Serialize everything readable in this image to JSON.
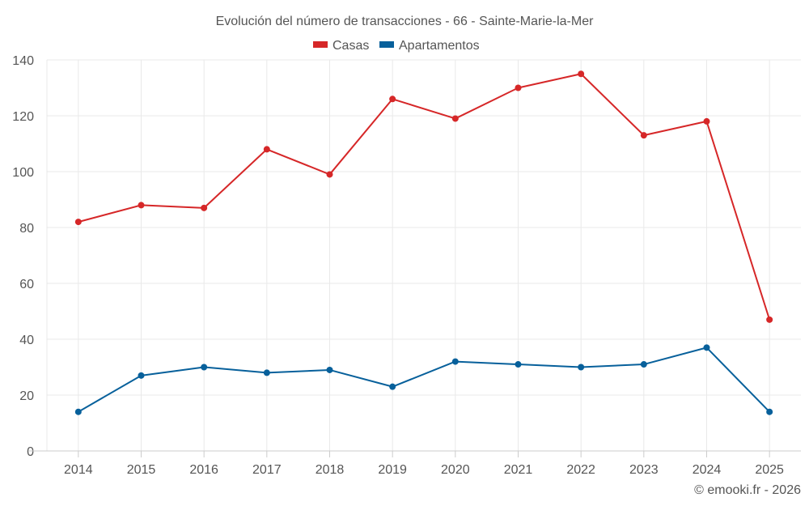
{
  "chart_data": {
    "type": "line",
    "title": "Evolución del número de transacciones - 66 - Sainte-Marie-la-Mer",
    "xlabel": "",
    "ylabel": "",
    "x": [
      "2014",
      "2015",
      "2016",
      "2017",
      "2018",
      "2019",
      "2020",
      "2021",
      "2022",
      "2023",
      "2024",
      "2025"
    ],
    "ylim": [
      0,
      140
    ],
    "yticks": [
      "0",
      "20",
      "40",
      "60",
      "80",
      "100",
      "120",
      "140"
    ],
    "ytick_values": [
      0,
      20,
      40,
      60,
      80,
      100,
      120,
      140
    ],
    "grid": true,
    "legend_position": "top-center",
    "series": [
      {
        "name": "Casas",
        "color": "#d62728",
        "values": [
          82,
          88,
          87,
          108,
          99,
          126,
          119,
          130,
          135,
          113,
          118,
          47
        ]
      },
      {
        "name": "Apartamentos",
        "color": "#07609b",
        "values": [
          14,
          27,
          30,
          28,
          29,
          23,
          32,
          31,
          30,
          31,
          37,
          14
        ]
      }
    ],
    "credit": "© emooki.fr - 2026"
  }
}
